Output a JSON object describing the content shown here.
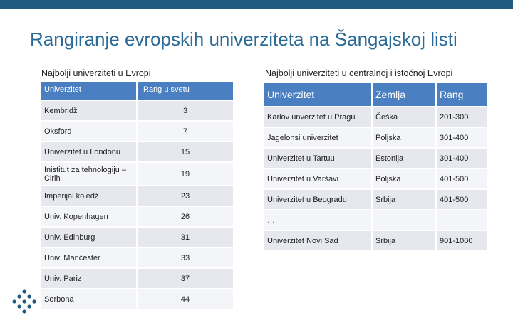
{
  "title": "Rangiranje evropskih univerziteta na Šangajskoj listi",
  "left": {
    "subtitle": "Najbolji univerziteti u Evropi",
    "headers": [
      "Univerzitet",
      "Rang u svetu"
    ],
    "rows": [
      [
        "Kembridž",
        "3"
      ],
      [
        "Oksford",
        "7"
      ],
      [
        "Univerzitet u Londonu",
        "15"
      ],
      [
        "Inistitut za tehnologiju –Cirih",
        "19"
      ],
      [
        "Imperijal koledž",
        "23"
      ],
      [
        "Univ. Kopenhagen",
        "26"
      ],
      [
        "Univ. Edinburg",
        "31"
      ],
      [
        "Univ. Mančester",
        "33"
      ],
      [
        "Univ. Pariz",
        "37"
      ],
      [
        "Sorbona",
        "44"
      ]
    ]
  },
  "right": {
    "subtitle": "Najbolji univerziteti u centralnoj i istočnoj Evropi",
    "headers": [
      "Univerzitet",
      "Zemlja",
      "Rang"
    ],
    "rows": [
      [
        "Karlov unverzitet u Pragu",
        "Češka",
        "201-300"
      ],
      [
        "Jagelonsi univerzitet",
        "Poljska",
        "301-400"
      ],
      [
        "Univerzitet u Tartuu",
        "Estonija",
        "301-400"
      ],
      [
        "Univerzitet u Varšavi",
        "Poljska",
        "401-500"
      ],
      [
        "Univerzitet u Beogradu",
        "Srbija",
        "401-500"
      ],
      [
        "…",
        "",
        ""
      ],
      [
        "Univerzitet Novi Sad",
        "Srbija",
        "901-1000"
      ]
    ]
  },
  "colors": {
    "accent": "#1f5a82",
    "title": "#2a6a96",
    "header": "#4a7fc1",
    "logo": "#1f5a82"
  },
  "logo_icon": "dots-cross-logo-icon"
}
